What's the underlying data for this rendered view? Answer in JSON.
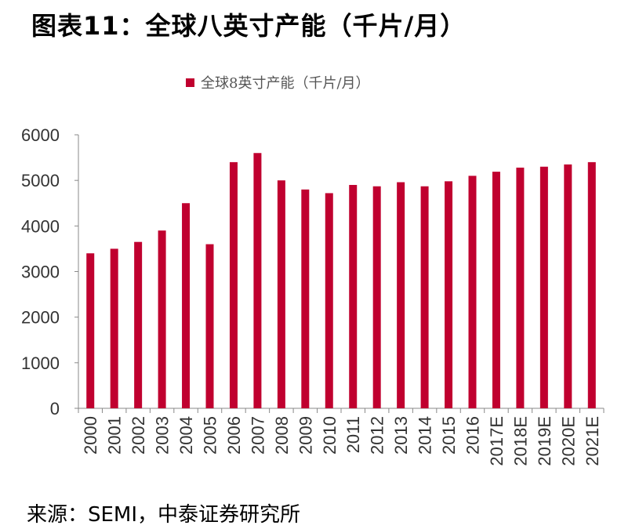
{
  "title": "图表11：全球八英寸产能（千片/月）",
  "source": "来源：SEMI，中泰证券研究所",
  "chart_data": {
    "type": "bar",
    "title": "",
    "legend": {
      "entries": [
        "全球8英寸产能（千片/月）"
      ],
      "placement": "top"
    },
    "categories": [
      "2000",
      "2001",
      "2002",
      "2003",
      "2004",
      "2005",
      "2006",
      "2007",
      "2008",
      "2009",
      "2010",
      "2011",
      "2012",
      "2013",
      "2014",
      "2015",
      "2016",
      "2017E",
      "2018E",
      "2019E",
      "2020E",
      "2021E"
    ],
    "series": [
      {
        "name": "全球8英寸产能（千片/月）",
        "color": "#C0002F",
        "values": [
          3400,
          3500,
          3650,
          3900,
          4500,
          3600,
          5400,
          5600,
          5000,
          4800,
          4720,
          4900,
          4870,
          4960,
          4870,
          4980,
          5100,
          5190,
          5280,
          5300,
          5350,
          5400
        ]
      }
    ],
    "ylim": [
      0,
      6000
    ],
    "yticks": [
      0,
      1000,
      2000,
      3000,
      4000,
      5000,
      6000
    ],
    "grid": false,
    "xlabel": "",
    "ylabel": ""
  }
}
